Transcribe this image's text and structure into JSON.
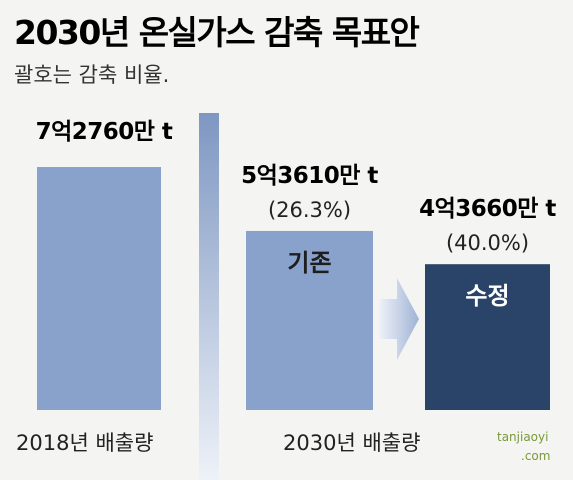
{
  "chart_data": {
    "type": "bar",
    "title": "2030년 온실가스 감축 목표안",
    "subtitle": "괄호는 감축 비율.",
    "categories": [
      "2018년 배출량",
      "2030년 배출량"
    ],
    "bars": [
      {
        "group": "2018년 배출량",
        "value": 72760,
        "label": "7억2760만 t",
        "percent_label": "",
        "inner_label": ""
      },
      {
        "group": "2030년 배출량",
        "value": 53610,
        "label": "5억3610만 t",
        "percent_label": "(26.3%)",
        "inner_label": "기존"
      },
      {
        "group": "2030년 배출량",
        "value": 43660,
        "label": "4억3660만 t",
        "percent_label": "(40.0%)",
        "inner_label": "수정"
      }
    ],
    "colors": {
      "bar_light": "#88a2cc",
      "bar_dark": "#2a4469",
      "divider": "#a9bbd6",
      "arrow": "#b8c7df",
      "inner_text_dark": "#ffffff",
      "inner_text_light": "#1e1e1e"
    },
    "watermark": {
      "site": "tanjiaoyi",
      "domain": ".com"
    }
  }
}
